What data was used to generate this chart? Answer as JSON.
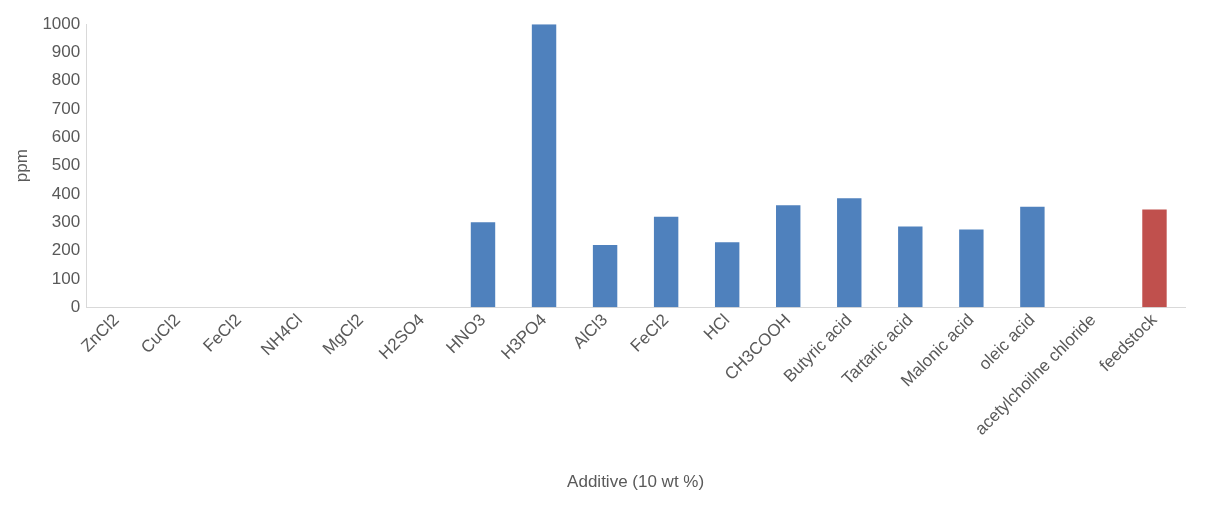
{
  "chart_data": {
    "type": "bar",
    "xlabel": "Additive (10 wt %)",
    "ylabel": "ppm",
    "categories": [
      "ZnCl2",
      "CuCl2",
      "FeCl2",
      "NH4Cl",
      "MgCl2",
      "H2SO4",
      "HNO3",
      "H3PO4",
      "AlCl3",
      "FeCl2",
      "HCl",
      "CH3COOH",
      "Butyric acid",
      "Tartaric acid",
      "Malonic acid",
      "oleic acid",
      "acetylchoilne chloride",
      "feedstock"
    ],
    "values": [
      0,
      0,
      0,
      0,
      0,
      0,
      300,
      1000,
      220,
      320,
      230,
      360,
      385,
      285,
      275,
      355,
      0,
      345
    ],
    "colors": [
      "#4f81bd",
      "#4f81bd",
      "#4f81bd",
      "#4f81bd",
      "#4f81bd",
      "#4f81bd",
      "#4f81bd",
      "#4f81bd",
      "#4f81bd",
      "#4f81bd",
      "#4f81bd",
      "#4f81bd",
      "#4f81bd",
      "#4f81bd",
      "#4f81bd",
      "#4f81bd",
      "#4f81bd",
      "#c0504d"
    ],
    "ylim": [
      0,
      1000
    ],
    "yticks": [
      0,
      100,
      200,
      300,
      400,
      500,
      600,
      700,
      800,
      900,
      1000
    ],
    "grid": false,
    "legend": false
  }
}
